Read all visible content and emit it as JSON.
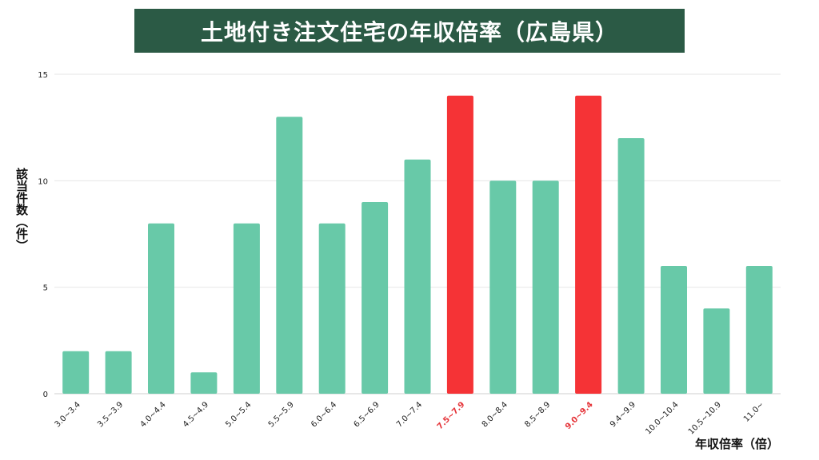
{
  "colors": {
    "banner_bg": "#2b5a45",
    "banner_text": "#ffffff",
    "bar_default": "#68c9a8",
    "bar_highlight": "#f53336",
    "label_default": "#222222",
    "label_highlight": "#e5353a",
    "grid": "#e6e6e6"
  },
  "chart_data": {
    "type": "bar",
    "title": "土地付き注文住宅の年収倍率（広島県）",
    "xlabel": "年収倍率（倍）",
    "ylabel": "該当件数（件）",
    "ylim": [
      0,
      15
    ],
    "yticks": [
      0,
      5,
      10,
      15
    ],
    "grid": true,
    "categories": [
      "3.0~3.4",
      "3.5~3.9",
      "4.0~4.4",
      "4.5~4.9",
      "5.0~5.4",
      "5.5~5.9",
      "6.0~6.4",
      "6.5~6.9",
      "7.0~7.4",
      "7.5~7.9",
      "8.0~8.4",
      "8.5~8.9",
      "9.0~9.4",
      "9.4~9.9",
      "10.0~10.4",
      "10.5~10.9",
      "11.0~"
    ],
    "values": [
      2,
      2,
      8,
      1,
      8,
      13,
      8,
      9,
      11,
      14,
      10,
      10,
      14,
      12,
      6,
      4,
      6
    ],
    "highlight": [
      "7.5~7.9",
      "9.0~9.4"
    ]
  }
}
